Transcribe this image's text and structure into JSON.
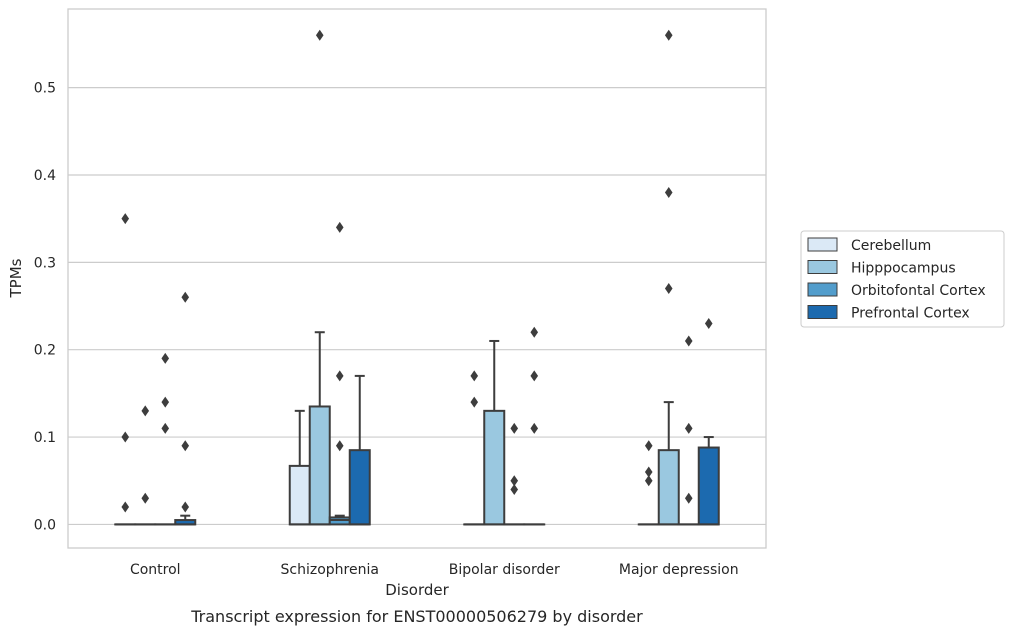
{
  "chart_data": {
    "type": "box",
    "caption": "Transcript expression for ENST00000506279 by disorder",
    "xlabel": "Disorder",
    "ylabel": "TPMs",
    "ylim": [
      -0.027,
      0.59
    ],
    "yticks": [
      0.0,
      0.1,
      0.2,
      0.3,
      0.4,
      0.5
    ],
    "ytick_labels": [
      "0.0",
      "0.1",
      "0.2",
      "0.3",
      "0.4",
      "0.5"
    ],
    "grid": "horizontal",
    "legend_position": "right",
    "categories": [
      "Control",
      "Schizophrenia",
      "Bipolar disorder",
      "Major depression"
    ],
    "series": [
      {
        "name": "Cerebellum",
        "color": "#dbe9f6",
        "boxes": [
          {
            "q1": 0,
            "median": 0,
            "q3": 0,
            "whisker_low": 0,
            "whisker_high": 0,
            "outliers": [
              0.1,
              0.35,
              0.02
            ]
          },
          {
            "q1": 0,
            "median": 0,
            "q3": 0.067,
            "whisker_low": 0,
            "whisker_high": 0.13,
            "outliers": []
          },
          {
            "q1": 0,
            "median": 0,
            "q3": 0,
            "whisker_low": 0,
            "whisker_high": 0,
            "outliers": [
              0.17,
              0.14
            ]
          },
          {
            "q1": 0,
            "median": 0,
            "q3": 0,
            "whisker_low": 0,
            "whisker_high": 0,
            "outliers": [
              0.09,
              0.06,
              0.05
            ]
          }
        ]
      },
      {
        "name": "Hipppocampus",
        "color": "#9ac8e0",
        "boxes": [
          {
            "q1": 0,
            "median": 0,
            "q3": 0,
            "whisker_low": 0,
            "whisker_high": 0,
            "outliers": [
              0.13,
              0.03
            ]
          },
          {
            "q1": 0,
            "median": 0,
            "q3": 0.135,
            "whisker_low": 0,
            "whisker_high": 0.22,
            "outliers": [
              0.56
            ]
          },
          {
            "q1": 0,
            "median": 0,
            "q3": 0.13,
            "whisker_low": 0,
            "whisker_high": 0.21,
            "outliers": []
          },
          {
            "q1": 0,
            "median": 0,
            "q3": 0.085,
            "whisker_low": 0,
            "whisker_high": 0.14,
            "outliers": [
              0.56,
              0.38,
              0.27
            ]
          }
        ]
      },
      {
        "name": "Orbitofontal Cortex",
        "color": "#529dcc",
        "boxes": [
          {
            "q1": 0,
            "median": 0,
            "q3": 0,
            "whisker_low": 0,
            "whisker_high": 0,
            "outliers": [
              0.19,
              0.14,
              0.11
            ]
          },
          {
            "q1": 0,
            "median": 0.005,
            "q3": 0.008,
            "whisker_low": 0,
            "whisker_high": 0.01,
            "outliers": [
              0.34,
              0.17,
              0.09
            ]
          },
          {
            "q1": 0,
            "median": 0,
            "q3": 0,
            "whisker_low": 0,
            "whisker_high": 0,
            "outliers": [
              0.11,
              0.05,
              0.04
            ]
          },
          {
            "q1": 0,
            "median": 0,
            "q3": 0,
            "whisker_low": 0,
            "whisker_high": 0,
            "outliers": [
              0.21,
              0.11,
              0.03
            ]
          }
        ]
      },
      {
        "name": "Prefrontal Cortex",
        "color": "#1c6aaf",
        "boxes": [
          {
            "q1": 0,
            "median": 0,
            "q3": 0.005,
            "whisker_low": 0,
            "whisker_high": 0.01,
            "outliers": [
              0.26,
              0.09,
              0.02
            ]
          },
          {
            "q1": 0,
            "median": 0,
            "q3": 0.085,
            "whisker_low": 0,
            "whisker_high": 0.17,
            "outliers": []
          },
          {
            "q1": 0,
            "median": 0,
            "q3": 0,
            "whisker_low": 0,
            "whisker_high": 0,
            "outliers": [
              0.22,
              0.17,
              0.11
            ]
          },
          {
            "q1": 0,
            "median": 0,
            "q3": 0.088,
            "whisker_low": 0,
            "whisker_high": 0.1,
            "outliers": [
              0.23
            ]
          }
        ]
      }
    ]
  }
}
